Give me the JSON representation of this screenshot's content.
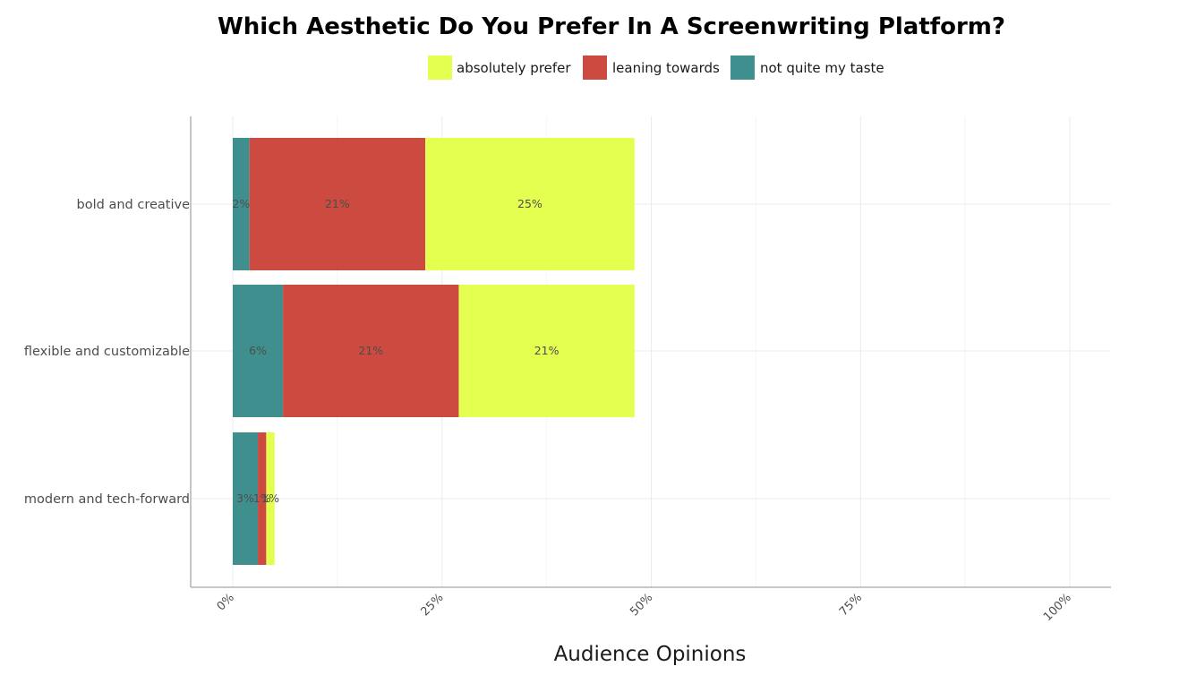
{
  "chart_data": {
    "type": "bar",
    "orientation": "horizontal",
    "stacked": true,
    "title": "Which Aesthetic Do You Prefer In A Screenwriting Platform?",
    "xlabel": "Audience Opinions",
    "ylabel": "",
    "xlim": [
      0,
      100
    ],
    "x_ticks": [
      0,
      25,
      50,
      75,
      100
    ],
    "x_tick_labels": [
      "0%",
      "25%",
      "50%",
      "75%",
      "100%"
    ],
    "categories": [
      "bold and creative",
      "flexible and customizable",
      "modern and tech-forward"
    ],
    "series": [
      {
        "name": "not quite my taste",
        "color": "#3f8f8e",
        "values": [
          2,
          6,
          3
        ],
        "labels": [
          "2%",
          "6%",
          "3%"
        ]
      },
      {
        "name": "leaning towards",
        "color": "#cc4a3f",
        "values": [
          21,
          21,
          1
        ],
        "labels": [
          "21%",
          "21%",
          "1%"
        ]
      },
      {
        "name": "absolutely prefer",
        "color": "#e4ff50",
        "values": [
          25,
          21,
          1
        ],
        "labels": [
          "25%",
          "21%",
          "1%"
        ]
      }
    ],
    "legend": {
      "position": "top",
      "order": [
        "absolutely prefer",
        "leaning towards",
        "not quite my taste"
      ]
    },
    "grid": true,
    "colors": {
      "grid": "#ebebeb",
      "axis": "#b3b3b3"
    }
  }
}
